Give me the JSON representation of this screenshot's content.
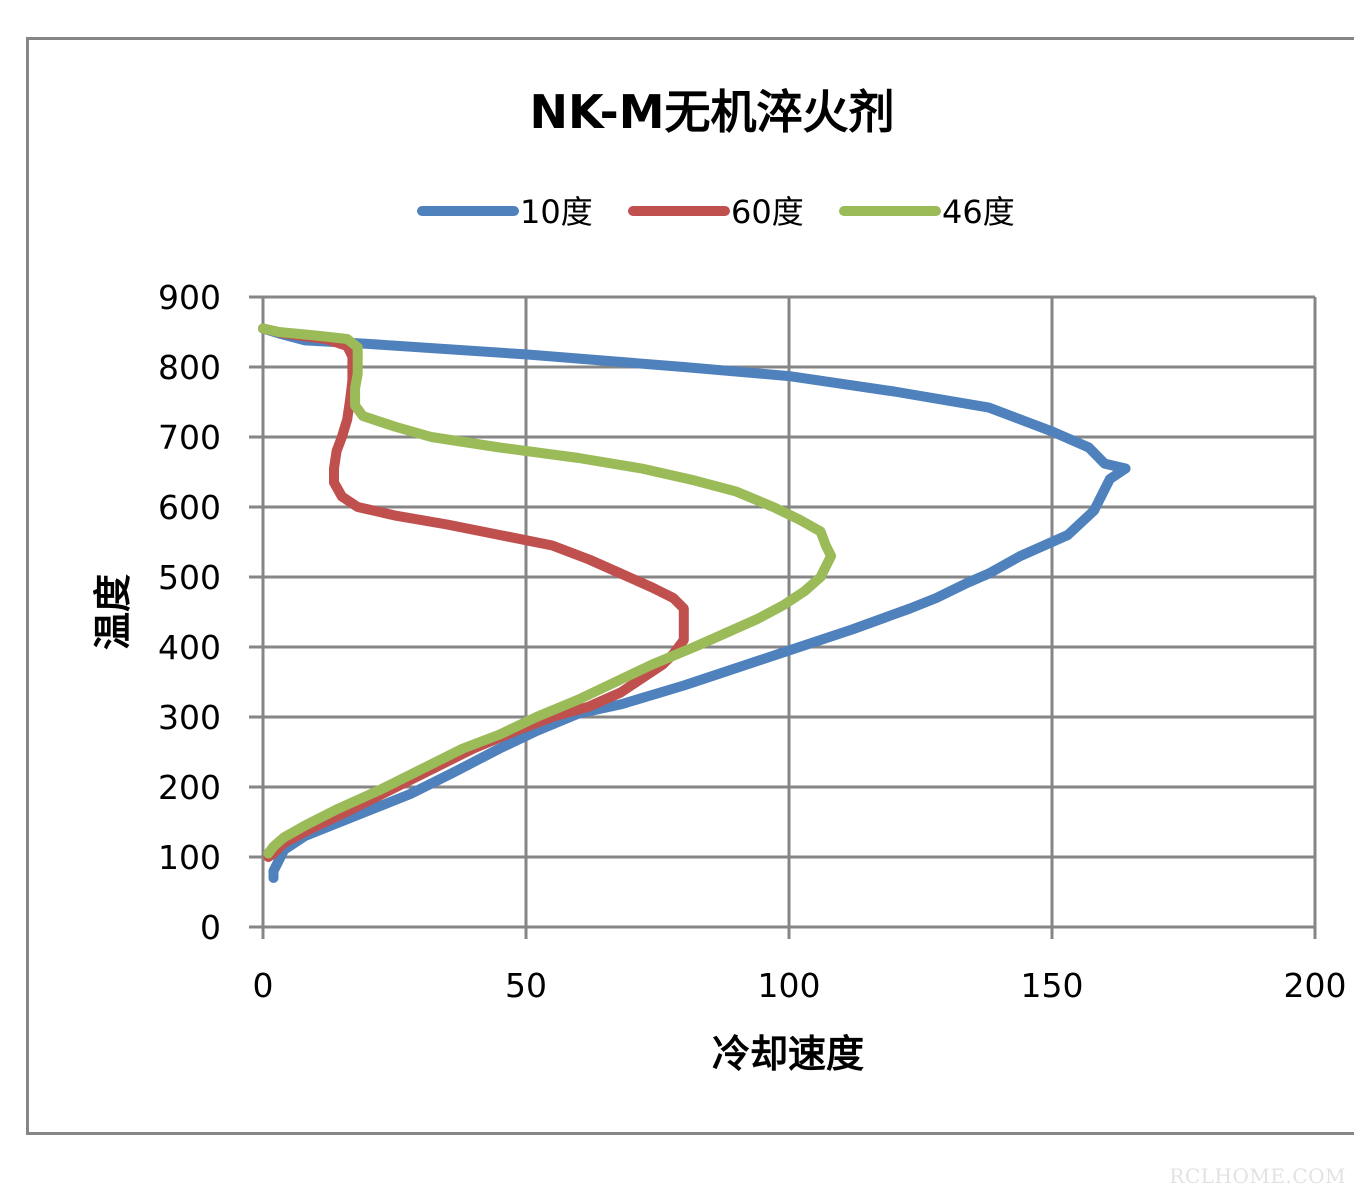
{
  "chart_data": {
    "type": "line",
    "title": "NK-M无机淬火剂",
    "xlabel": "冷却速度",
    "ylabel": "温度",
    "xlim": [
      0,
      200
    ],
    "ylim": [
      0,
      900
    ],
    "xticks": [
      "0",
      "50",
      "100",
      "150",
      "200"
    ],
    "yticks": [
      "0",
      "100",
      "200",
      "300",
      "400",
      "500",
      "600",
      "700",
      "800",
      "900"
    ],
    "grid": true,
    "legend_position": "top",
    "series": [
      {
        "name": "10度",
        "color": "#4f81bd",
        "points": [
          [
            0,
            855
          ],
          [
            3,
            848
          ],
          [
            8,
            838
          ],
          [
            20,
            833
          ],
          [
            50,
            818
          ],
          [
            80,
            800
          ],
          [
            100,
            787
          ],
          [
            120,
            765
          ],
          [
            138,
            742
          ],
          [
            150,
            708
          ],
          [
            157,
            685
          ],
          [
            160,
            662
          ],
          [
            164,
            655
          ],
          [
            161,
            640
          ],
          [
            159,
            610
          ],
          [
            158,
            595
          ],
          [
            153,
            560
          ],
          [
            144,
            530
          ],
          [
            138,
            505
          ],
          [
            134,
            492
          ],
          [
            128,
            470
          ],
          [
            123,
            455
          ],
          [
            112,
            425
          ],
          [
            100,
            395
          ],
          [
            90,
            370
          ],
          [
            80,
            345
          ],
          [
            68,
            318
          ],
          [
            60,
            305
          ],
          [
            52,
            280
          ],
          [
            45,
            255
          ],
          [
            36,
            220
          ],
          [
            28,
            190
          ],
          [
            18,
            160
          ],
          [
            8,
            130
          ],
          [
            4,
            110
          ],
          [
            3,
            95
          ],
          [
            2,
            80
          ],
          [
            2,
            70
          ]
        ]
      },
      {
        "name": "60度",
        "color": "#c0504d",
        "points": [
          [
            0,
            855
          ],
          [
            4,
            848
          ],
          [
            12,
            840
          ],
          [
            16,
            830
          ],
          [
            17,
            815
          ],
          [
            17,
            780
          ],
          [
            16.5,
            750
          ],
          [
            16,
            725
          ],
          [
            15,
            700
          ],
          [
            14,
            680
          ],
          [
            13.5,
            655
          ],
          [
            13.5,
            635
          ],
          [
            15,
            615
          ],
          [
            18,
            600
          ],
          [
            25,
            588
          ],
          [
            35,
            575
          ],
          [
            45,
            560
          ],
          [
            55,
            545
          ],
          [
            62,
            525
          ],
          [
            68,
            505
          ],
          [
            74,
            485
          ],
          [
            78,
            470
          ],
          [
            80,
            455
          ],
          [
            80,
            430
          ],
          [
            80,
            410
          ],
          [
            78,
            390
          ],
          [
            76,
            375
          ],
          [
            72,
            355
          ],
          [
            68,
            335
          ],
          [
            62,
            315
          ],
          [
            55,
            300
          ],
          [
            48,
            280
          ],
          [
            40,
            255
          ],
          [
            32,
            225
          ],
          [
            24,
            195
          ],
          [
            16,
            165
          ],
          [
            9,
            140
          ],
          [
            4,
            120
          ],
          [
            2,
            105
          ],
          [
            1,
            100
          ]
        ]
      },
      {
        "name": "46度",
        "color": "#9bbb59",
        "points": [
          [
            0,
            855
          ],
          [
            3,
            850
          ],
          [
            10,
            845
          ],
          [
            16,
            840
          ],
          [
            18,
            828
          ],
          [
            18,
            812
          ],
          [
            18,
            790
          ],
          [
            17.5,
            770
          ],
          [
            17.5,
            745
          ],
          [
            19,
            730
          ],
          [
            25,
            715
          ],
          [
            32,
            700
          ],
          [
            45,
            685
          ],
          [
            60,
            670
          ],
          [
            72,
            655
          ],
          [
            82,
            638
          ],
          [
            90,
            622
          ],
          [
            97,
            600
          ],
          [
            102,
            582
          ],
          [
            106,
            565
          ],
          [
            107,
            545
          ],
          [
            108,
            530
          ],
          [
            107,
            515
          ],
          [
            106,
            500
          ],
          [
            103,
            480
          ],
          [
            99,
            460
          ],
          [
            94,
            440
          ],
          [
            88,
            420
          ],
          [
            82,
            400
          ],
          [
            74,
            375
          ],
          [
            67,
            350
          ],
          [
            60,
            325
          ],
          [
            52,
            300
          ],
          [
            45,
            275
          ],
          [
            38,
            255
          ],
          [
            30,
            225
          ],
          [
            22,
            195
          ],
          [
            14,
            168
          ],
          [
            8,
            145
          ],
          [
            4,
            128
          ],
          [
            2,
            115
          ],
          [
            1,
            105
          ]
        ]
      }
    ]
  },
  "watermark": "RCLHOME.COM"
}
